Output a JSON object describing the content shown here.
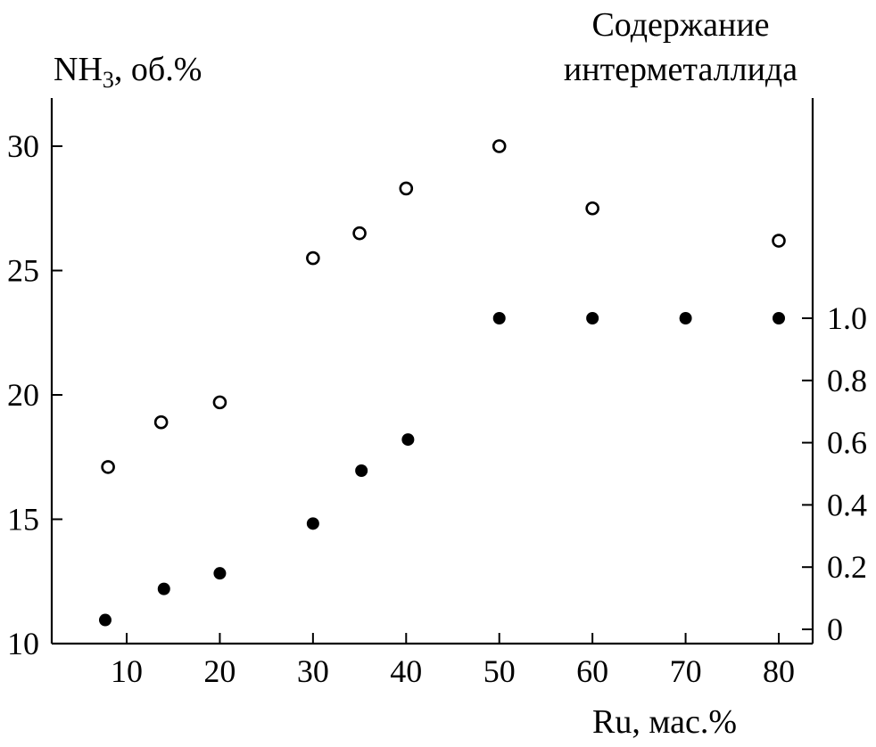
{
  "chart_data": {
    "type": "scatter",
    "y_left_label": "NH₃, об.%",
    "y_right_label": [
      "Содержание",
      "интерметаллида"
    ],
    "x_label": "Ru, мас.%",
    "x_ticks": [
      10,
      20,
      30,
      40,
      50,
      60,
      70,
      80
    ],
    "x_tick_labels": [
      "10",
      "20",
      "30",
      "40",
      "50",
      "60",
      "70",
      "80"
    ],
    "y_left_ticks": [
      10,
      15,
      20,
      25,
      30
    ],
    "y_left_tick_labels": [
      "10",
      "15",
      "20",
      "25",
      "30"
    ],
    "y_left_range": [
      10,
      32
    ],
    "y_right_ticks": [
      0,
      0.2,
      0.4,
      0.6,
      0.8,
      1.0
    ],
    "y_right_tick_labels": [
      "0",
      "0.2",
      "0.4",
      "0.6",
      "0.8",
      "1.0"
    ],
    "y_right_range": [
      0,
      1.0
    ],
    "series": [
      {
        "marker": "open-circle",
        "axis": "left",
        "x": [
          8,
          13.7,
          20,
          30,
          35,
          40,
          50,
          60,
          80
        ],
        "y": [
          17.1,
          18.9,
          19.7,
          25.5,
          26.5,
          28.3,
          30.0,
          27.5,
          26.2
        ]
      },
      {
        "marker": "filled-circle",
        "axis": "right",
        "x": [
          7.7,
          14,
          20,
          30,
          35.2,
          40.2,
          50,
          60,
          70,
          80
        ],
        "y": [
          0.03,
          0.13,
          0.18,
          0.34,
          0.51,
          0.61,
          1.0,
          1.0,
          1.0,
          1.0
        ]
      }
    ],
    "grid": false,
    "legend": "none"
  }
}
